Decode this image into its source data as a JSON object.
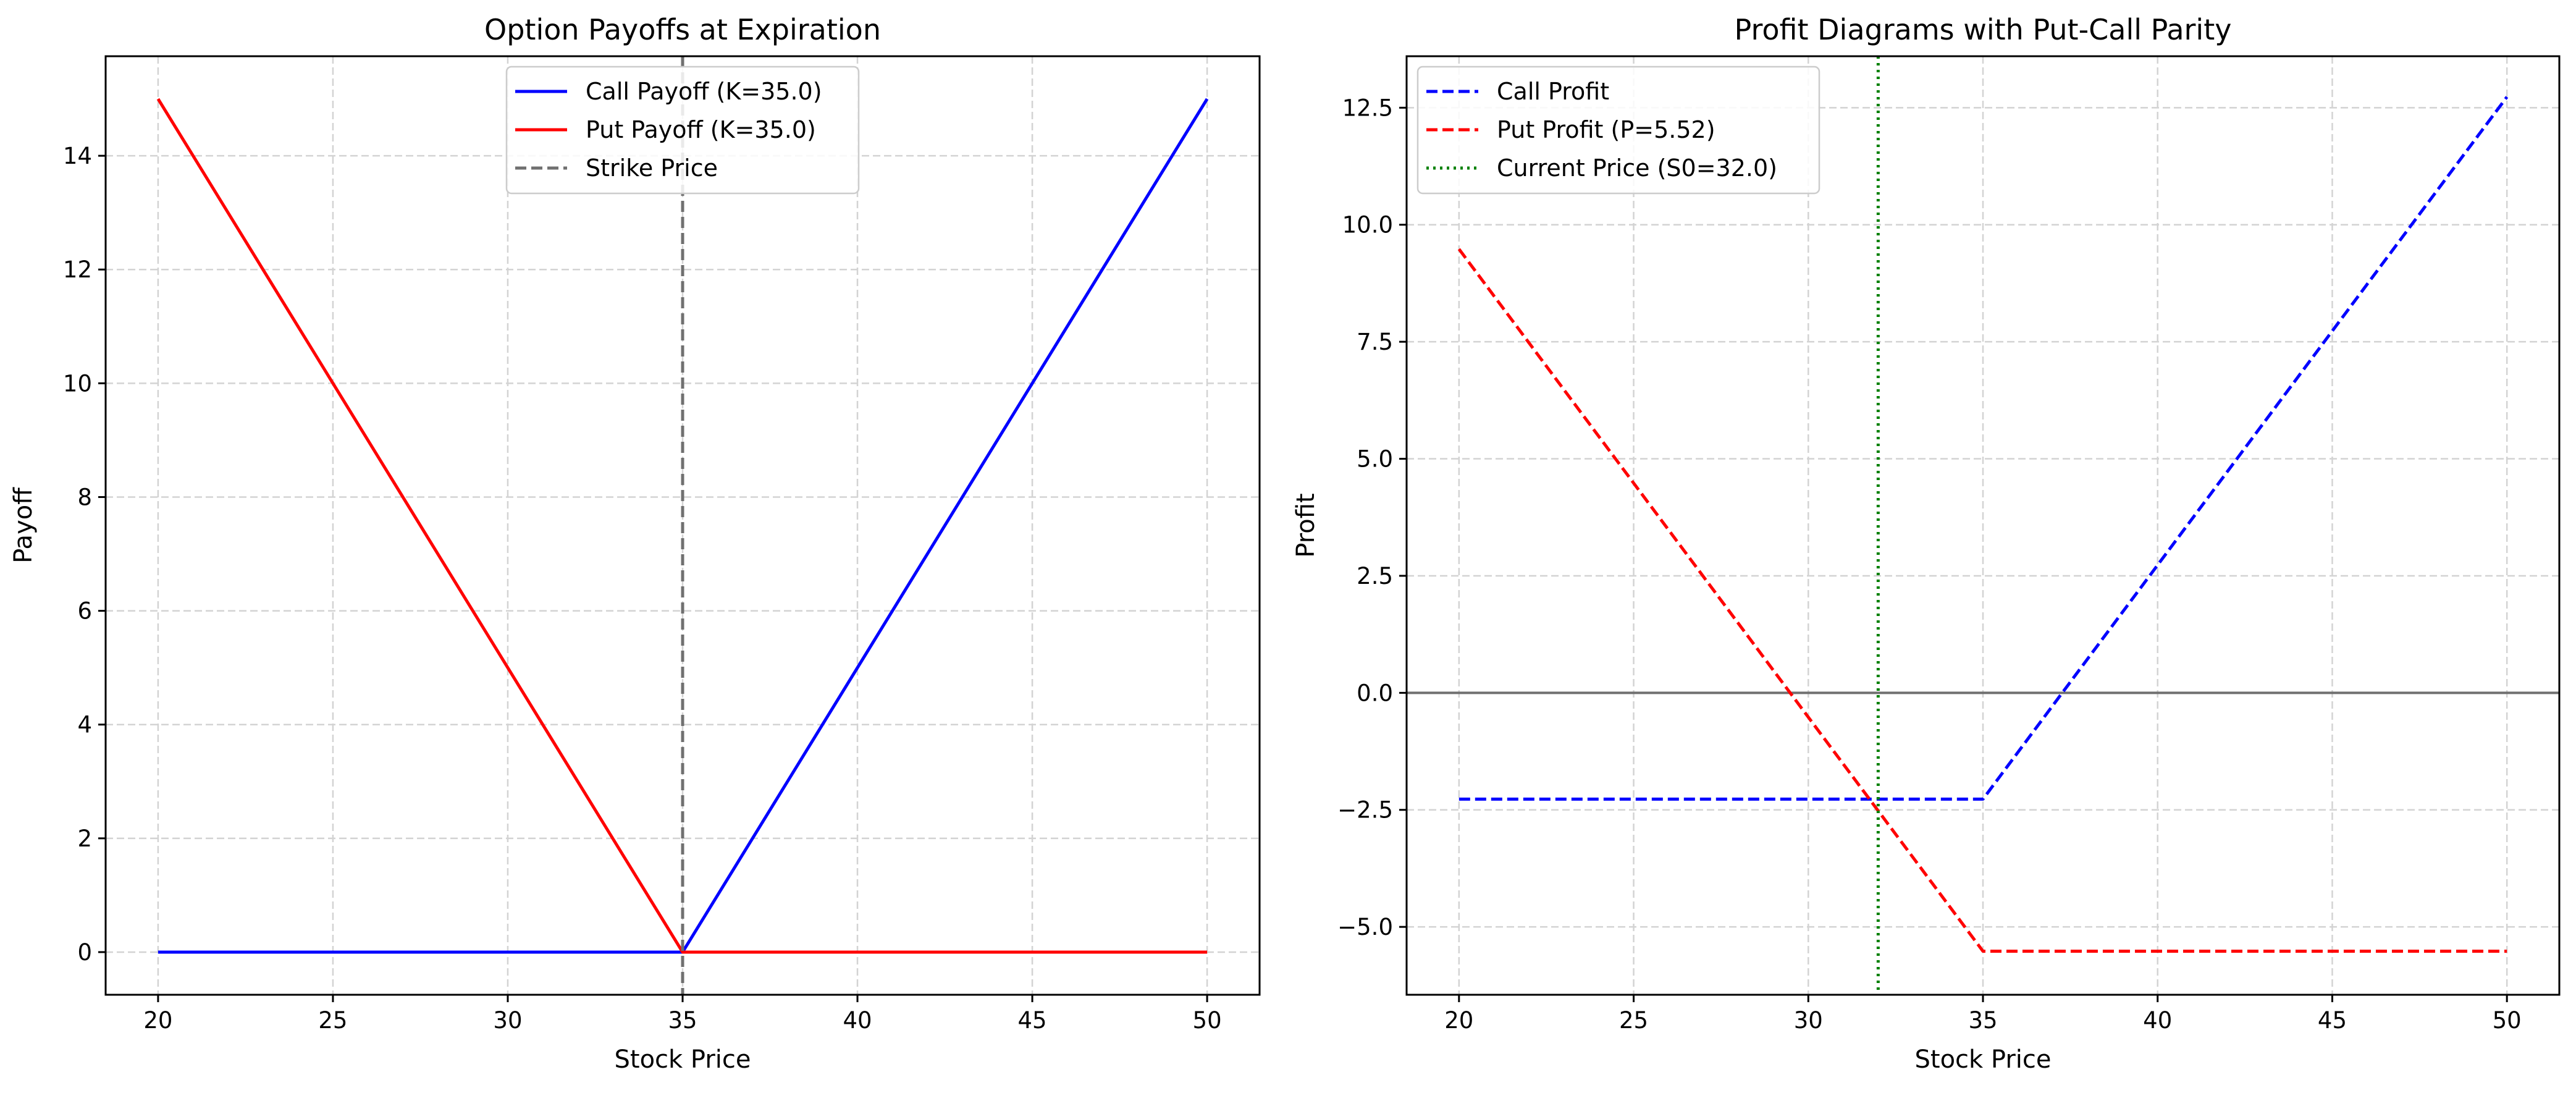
{
  "chart_data": [
    {
      "type": "line",
      "title": "Option Payoffs at Expiration",
      "xlabel": "Stock Price",
      "ylabel": "Payoff",
      "xlim": [
        18.5,
        51.5
      ],
      "ylim": [
        -0.75,
        15.75
      ],
      "xticks": [
        20,
        25,
        30,
        35,
        40,
        45,
        50
      ],
      "yticks": [
        0,
        2,
        4,
        6,
        8,
        10,
        12,
        14
      ],
      "ytick_labels": [
        "0",
        "2",
        "4",
        "6",
        "8",
        "10",
        "12",
        "14"
      ],
      "grid": true,
      "legend_position": "top-center",
      "series": [
        {
          "name": "Call Payoff (K=35.0)",
          "color": "#0000ff",
          "style": "solid",
          "x": [
            20,
            35,
            50
          ],
          "y": [
            0,
            0,
            15
          ]
        },
        {
          "name": "Put Payoff (K=35.0)",
          "color": "#ff0000",
          "style": "solid",
          "x": [
            20,
            35,
            50
          ],
          "y": [
            15,
            0,
            0
          ]
        }
      ],
      "vlines": [
        {
          "name": "Strike Price",
          "x": 35,
          "color": "#707070",
          "style": "dashed"
        }
      ],
      "hlines": []
    },
    {
      "type": "line",
      "title": "Profit Diagrams with Put-Call Parity",
      "xlabel": "Stock Price",
      "ylabel": "Profit",
      "xlim": [
        18.5,
        51.5
      ],
      "ylim": [
        -6.45,
        13.6
      ],
      "xticks": [
        20,
        25,
        30,
        35,
        40,
        45,
        50
      ],
      "yticks": [
        -5,
        -2.5,
        0,
        2.5,
        5,
        7.5,
        10,
        12.5
      ],
      "ytick_labels": [
        "−5.0",
        "−2.5",
        "0.0",
        "2.5",
        "5.0",
        "7.5",
        "10.0",
        "12.5"
      ],
      "grid": true,
      "legend_position": "top-left",
      "series": [
        {
          "name": "Call Profit",
          "color": "#0000ff",
          "style": "dashed",
          "x": [
            20,
            35,
            50
          ],
          "y": [
            -2.27,
            -2.27,
            12.73
          ]
        },
        {
          "name": "Put Profit (P=5.52)",
          "color": "#ff0000",
          "style": "dashed",
          "x": [
            20,
            35,
            50
          ],
          "y": [
            9.48,
            -5.52,
            -5.52
          ]
        }
      ],
      "vlines": [
        {
          "name": "Current Price (S0=32.0)",
          "x": 32,
          "color": "#008000",
          "style": "dotted"
        }
      ],
      "hlines": [
        {
          "y": 0,
          "color": "#707070",
          "style": "solid"
        }
      ]
    }
  ]
}
